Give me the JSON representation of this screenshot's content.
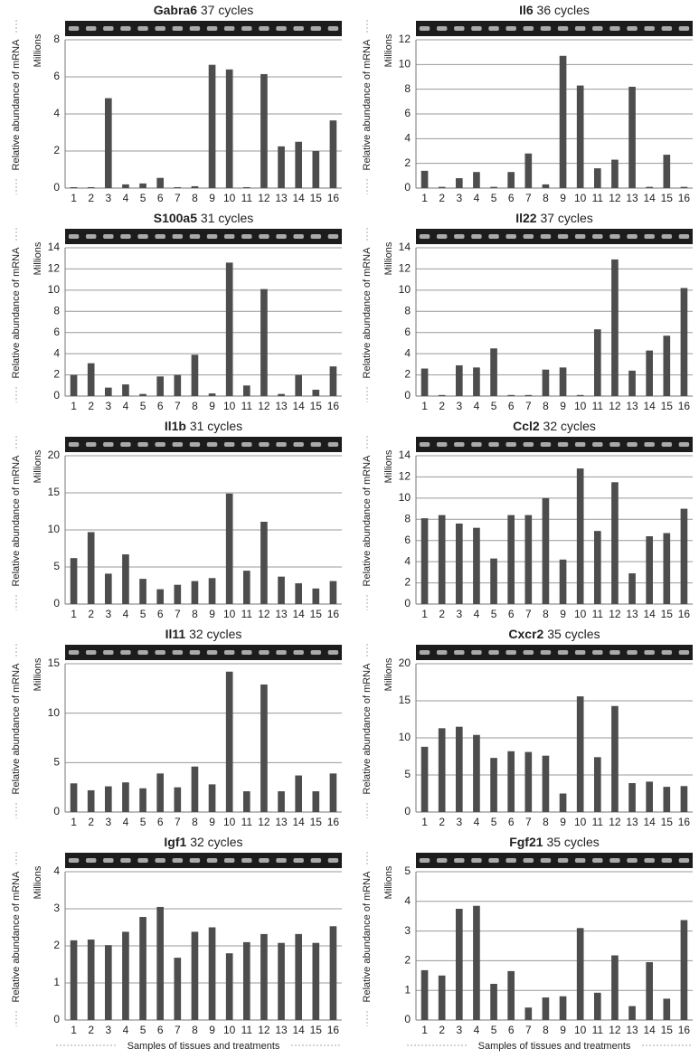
{
  "chart_data": [
    {
      "type": "bar",
      "title": "Gabra6",
      "cycles": "37 cycles",
      "ylabel": "Relative abundance of mRNA",
      "unit": "Millions",
      "color": "#4d4d4d",
      "grid": true,
      "categories": [
        "1",
        "2",
        "3",
        "4",
        "5",
        "6",
        "7",
        "8",
        "9",
        "10",
        "11",
        "12",
        "13",
        "14",
        "15",
        "16"
      ],
      "values": [
        0.05,
        0.05,
        4.85,
        0.2,
        0.25,
        0.55,
        0.05,
        0.1,
        6.65,
        6.4,
        0.05,
        6.15,
        2.25,
        2.5,
        2.0,
        3.65
      ],
      "ylim": [
        0,
        8
      ],
      "yticks": [
        0,
        2,
        4,
        6,
        8
      ]
    },
    {
      "type": "bar",
      "title": "Il6",
      "cycles": "36 cycles",
      "ylabel": "Relative abundance of mRNA",
      "unit": "Millions",
      "color": "#4d4d4d",
      "grid": true,
      "categories": [
        "1",
        "2",
        "3",
        "4",
        "5",
        "6",
        "7",
        "8",
        "9",
        "10",
        "11",
        "12",
        "13",
        "14",
        "15",
        "16"
      ],
      "values": [
        1.4,
        0.1,
        0.8,
        1.3,
        0.1,
        1.3,
        2.8,
        0.3,
        10.7,
        8.3,
        1.6,
        2.3,
        8.2,
        0.1,
        2.7,
        0.1
      ],
      "ylim": [
        0,
        12
      ],
      "yticks": [
        0,
        2,
        4,
        6,
        8,
        10,
        12
      ]
    },
    {
      "type": "bar",
      "title": "S100a5",
      "cycles": "31 cycles",
      "ylabel": "Relative abundance of mRNA",
      "unit": "Millions",
      "color": "#4d4d4d",
      "grid": true,
      "categories": [
        "1",
        "2",
        "3",
        "4",
        "5",
        "6",
        "7",
        "8",
        "9",
        "10",
        "11",
        "12",
        "13",
        "14",
        "15",
        "16"
      ],
      "values": [
        2.0,
        3.1,
        0.8,
        1.1,
        0.2,
        1.85,
        2.0,
        3.9,
        0.25,
        12.6,
        1.0,
        10.1,
        0.2,
        2.0,
        0.6,
        2.8
      ],
      "ylim": [
        0,
        14
      ],
      "yticks": [
        0,
        2,
        4,
        6,
        8,
        10,
        12,
        14
      ]
    },
    {
      "type": "bar",
      "title": "Il22",
      "cycles": "37 cycles",
      "ylabel": "Relative abundance of mRNA",
      "unit": "Millions",
      "color": "#4d4d4d",
      "grid": true,
      "categories": [
        "1",
        "2",
        "3",
        "4",
        "5",
        "6",
        "7",
        "8",
        "9",
        "10",
        "11",
        "12",
        "13",
        "14",
        "15",
        "16"
      ],
      "values": [
        2.6,
        0.1,
        2.9,
        2.7,
        4.5,
        0.1,
        0.1,
        2.5,
        2.7,
        0.1,
        6.3,
        12.9,
        2.4,
        4.3,
        5.7,
        10.2
      ],
      "ylim": [
        0,
        14
      ],
      "yticks": [
        0,
        2,
        4,
        6,
        8,
        10,
        12,
        14
      ]
    },
    {
      "type": "bar",
      "title": "Il1b",
      "cycles": "31 cycles",
      "ylabel": "Relative abundance of mRNA",
      "unit": "Millions",
      "color": "#4d4d4d",
      "grid": true,
      "categories": [
        "1",
        "2",
        "3",
        "4",
        "5",
        "6",
        "7",
        "8",
        "9",
        "10",
        "11",
        "12",
        "13",
        "14",
        "15",
        "16"
      ],
      "values": [
        6.2,
        9.7,
        4.1,
        6.7,
        3.4,
        2.0,
        2.6,
        3.1,
        3.5,
        14.9,
        4.5,
        11.1,
        3.7,
        2.8,
        2.1,
        3.1
      ],
      "ylim": [
        0,
        20
      ],
      "yticks": [
        0,
        5,
        10,
        15,
        20
      ]
    },
    {
      "type": "bar",
      "title": "Ccl2",
      "cycles": "32 cycles",
      "ylabel": "Relative abundance of mRNA",
      "unit": "Millions",
      "color": "#4d4d4d",
      "grid": true,
      "categories": [
        "1",
        "2",
        "3",
        "4",
        "5",
        "6",
        "7",
        "8",
        "9",
        "10",
        "11",
        "12",
        "13",
        "14",
        "15",
        "16"
      ],
      "values": [
        8.1,
        8.4,
        7.6,
        7.2,
        4.3,
        8.4,
        8.4,
        10.0,
        4.2,
        12.8,
        6.9,
        11.5,
        2.9,
        6.4,
        6.7,
        9.0
      ],
      "ylim": [
        0,
        14
      ],
      "yticks": [
        0,
        2,
        4,
        6,
        8,
        10,
        12,
        14
      ]
    },
    {
      "type": "bar",
      "title": "Il11",
      "cycles": "32 cycles",
      "ylabel": "Relative abundance of mRNA",
      "unit": "Millions",
      "color": "#4d4d4d",
      "grid": true,
      "categories": [
        "1",
        "2",
        "3",
        "4",
        "5",
        "6",
        "7",
        "8",
        "9",
        "10",
        "11",
        "12",
        "13",
        "14",
        "15",
        "16"
      ],
      "values": [
        2.9,
        2.2,
        2.6,
        3.0,
        2.4,
        3.9,
        2.5,
        4.6,
        2.8,
        14.2,
        2.1,
        12.9,
        2.1,
        3.7,
        2.1,
        3.9
      ],
      "ylim": [
        0,
        15
      ],
      "yticks": [
        0,
        5,
        10,
        15
      ]
    },
    {
      "type": "bar",
      "title": "Cxcr2",
      "cycles": "35 cycles",
      "ylabel": "Relative abundance of mRNA",
      "unit": "Millions",
      "color": "#4d4d4d",
      "grid": true,
      "categories": [
        "1",
        "2",
        "3",
        "4",
        "5",
        "6",
        "7",
        "8",
        "9",
        "10",
        "11",
        "12",
        "13",
        "14",
        "15",
        "16"
      ],
      "values": [
        8.8,
        11.3,
        11.5,
        10.4,
        7.3,
        8.2,
        8.1,
        7.6,
        2.5,
        15.6,
        7.4,
        14.3,
        3.9,
        4.1,
        3.4,
        3.5
      ],
      "ylim": [
        0,
        20
      ],
      "yticks": [
        0,
        5,
        10,
        15,
        20
      ]
    },
    {
      "type": "bar",
      "title": "Igf1",
      "cycles": "32 cycles",
      "ylabel": "Relative abundance of mRNA",
      "unit": "Millions",
      "xlabel": "Samples of tissues and treatments",
      "color": "#4d4d4d",
      "grid": true,
      "categories": [
        "1",
        "2",
        "3",
        "4",
        "5",
        "6",
        "7",
        "8",
        "9",
        "10",
        "11",
        "12",
        "13",
        "14",
        "15",
        "16"
      ],
      "values": [
        2.15,
        2.17,
        2.02,
        2.38,
        2.78,
        3.05,
        1.68,
        2.38,
        2.5,
        1.8,
        2.1,
        2.32,
        2.08,
        2.32,
        2.08,
        2.53
      ],
      "ylim": [
        0,
        4
      ],
      "yticks": [
        0,
        1,
        2,
        3,
        4
      ]
    },
    {
      "type": "bar",
      "title": "Fgf21",
      "cycles": "35 cycles",
      "ylabel": "Relative abundance of mRNA",
      "unit": "Millions",
      "xlabel": "Samples of tissues and treatments",
      "color": "#4d4d4d",
      "grid": true,
      "categories": [
        "1",
        "2",
        "3",
        "4",
        "5",
        "6",
        "7",
        "8",
        "9",
        "10",
        "11",
        "12",
        "13",
        "14",
        "15",
        "16"
      ],
      "values": [
        1.68,
        1.5,
        3.75,
        3.85,
        1.22,
        1.65,
        0.42,
        0.76,
        0.8,
        3.1,
        0.92,
        2.18,
        0.47,
        1.95,
        0.72,
        3.37
      ],
      "ylim": [
        0,
        5
      ],
      "yticks": [
        0,
        1,
        2,
        3,
        4,
        5
      ]
    }
  ]
}
